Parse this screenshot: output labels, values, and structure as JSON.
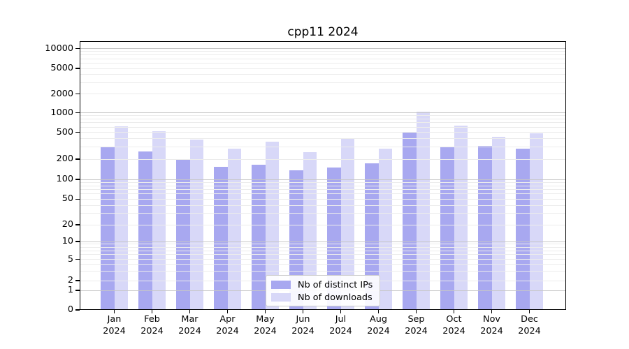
{
  "chart_data": {
    "type": "bar",
    "title": "cpp11 2024",
    "categories": [
      "Jan 2024",
      "Feb 2024",
      "Mar 2024",
      "Apr 2024",
      "May 2024",
      "Jun 2024",
      "Jul 2024",
      "Aug 2024",
      "Sep 2024",
      "Oct 2024",
      "Nov 2024",
      "Dec 2024"
    ],
    "month_labels": [
      "Jan",
      "Feb",
      "Mar",
      "Apr",
      "May",
      "Jun",
      "Jul",
      "Aug",
      "Sep",
      "Oct",
      "Nov",
      "Dec"
    ],
    "year_label": "2024",
    "series": [
      {
        "name": "Nb of distinct IPs",
        "color": "#a8a8f0",
        "values": [
          310,
          262,
          202,
          155,
          165,
          138,
          150,
          172,
          510,
          300,
          312,
          283
        ]
      },
      {
        "name": "Nb of downloads",
        "color": "#d8d8f8",
        "values": [
          615,
          515,
          385,
          284,
          365,
          252,
          413,
          288,
          1030,
          640,
          432,
          478
        ]
      }
    ],
    "xlabel": "",
    "ylabel": "",
    "yscale": "symlog",
    "ytick_values": [
      0,
      1,
      2,
      5,
      10,
      20,
      50,
      100,
      200,
      500,
      1000,
      2000,
      5000,
      10000
    ],
    "ytick_labels": [
      "0",
      "1",
      "2",
      "5",
      "10",
      "20",
      "50",
      "100",
      "200",
      "500",
      "1000",
      "2000",
      "5000",
      "10000"
    ],
    "ylim": [
      0,
      14000
    ],
    "grid": "on",
    "legend_position": "lower center",
    "colors": {
      "major_grid": "#c6c6c6",
      "minor_grid": "#ececec",
      "axis": "#000000",
      "background": "#ffffff"
    }
  }
}
